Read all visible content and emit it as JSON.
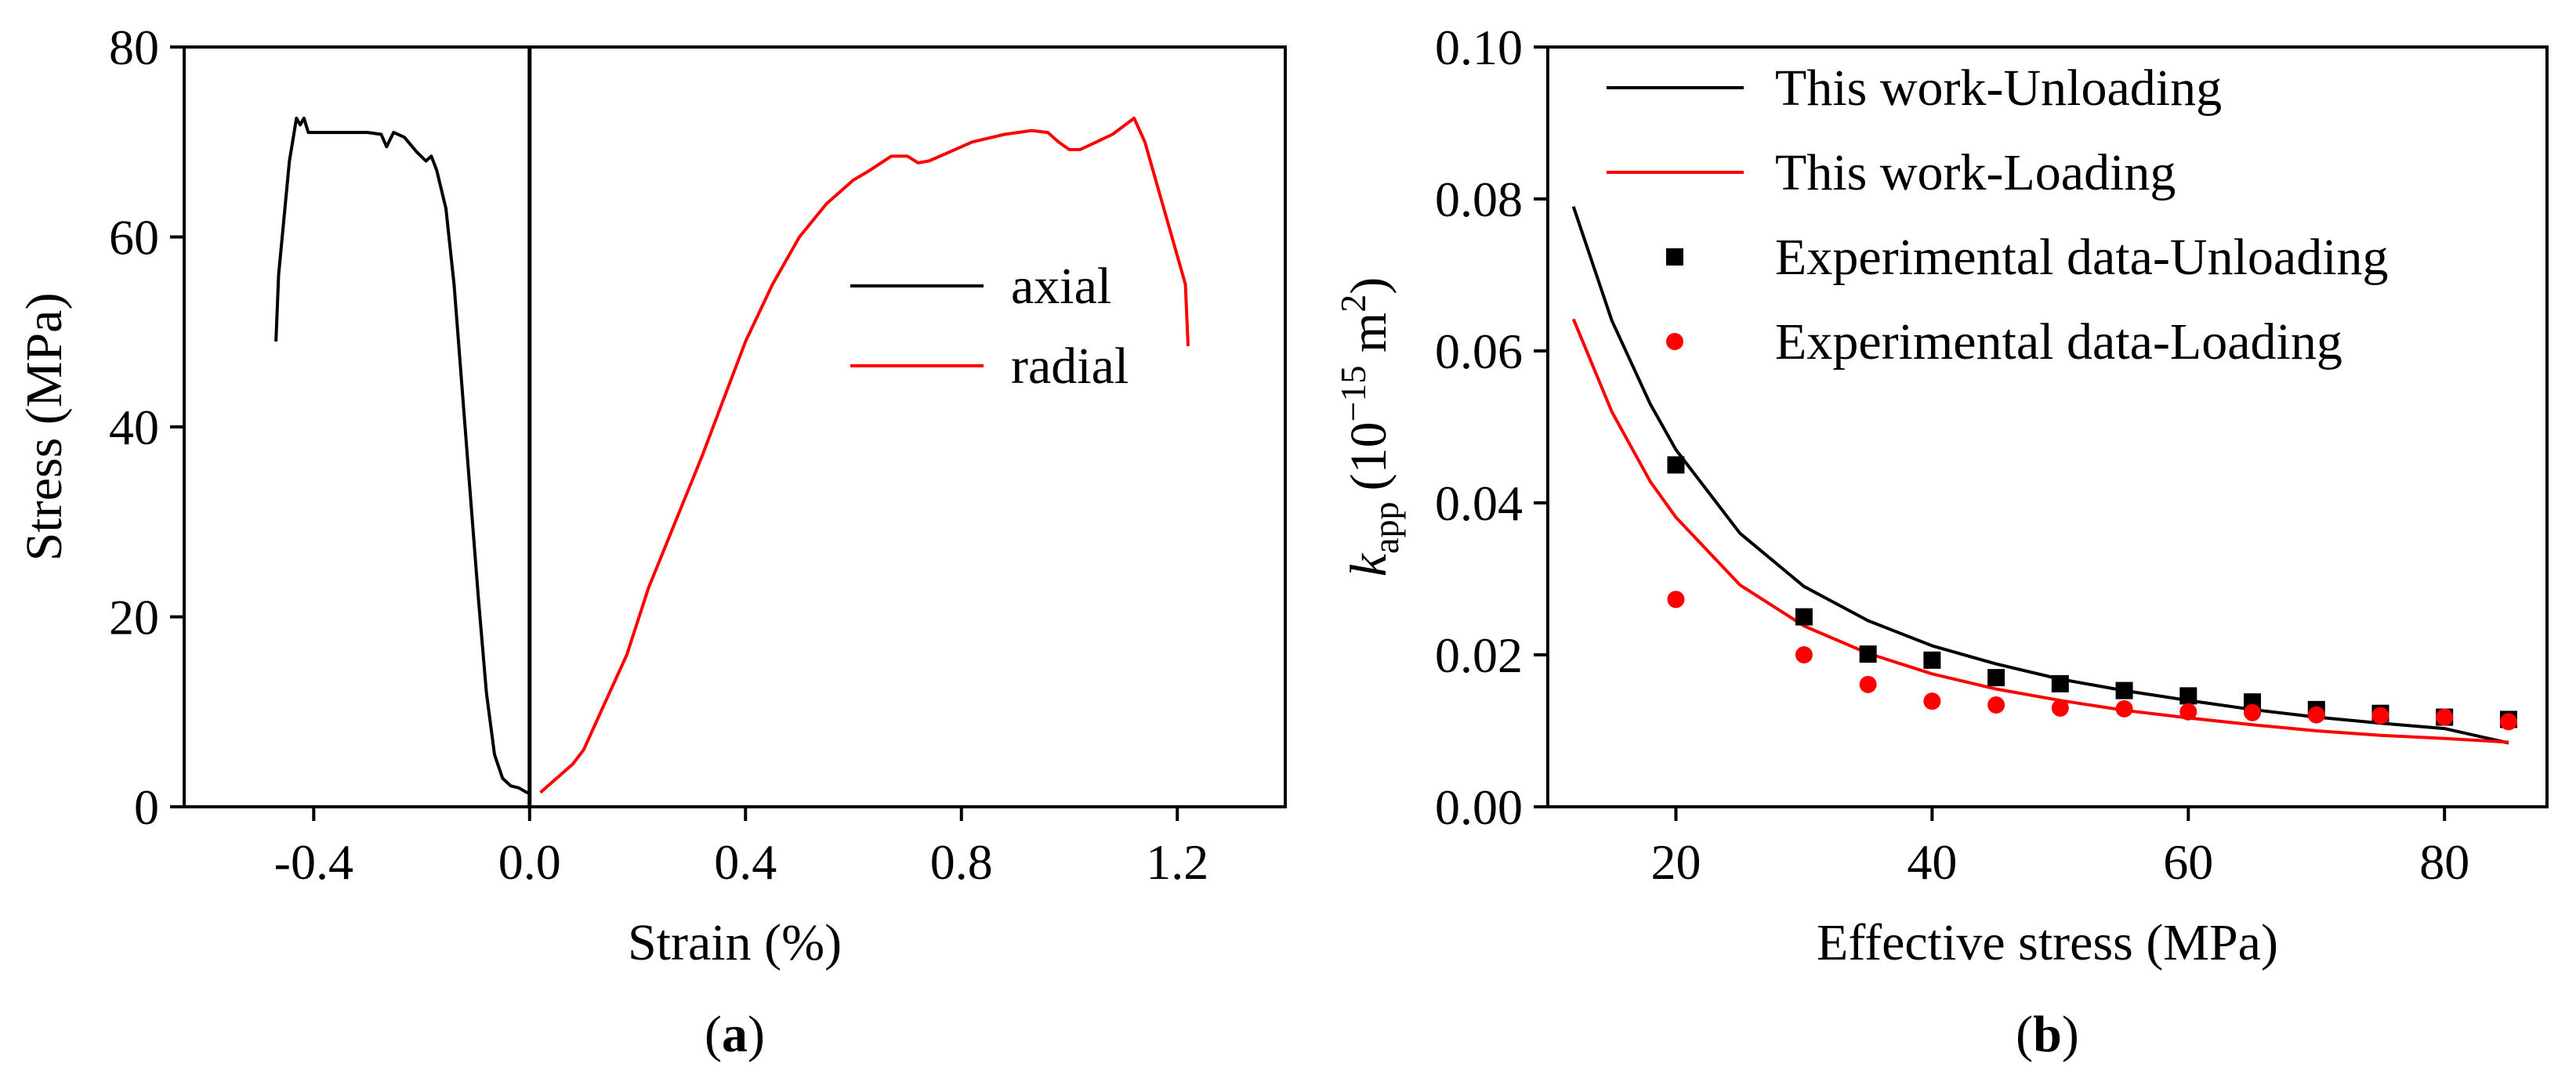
{
  "chart_data": [
    {
      "type": "line",
      "panel": "(a)",
      "panel_letter": "a",
      "xlabel": "Strain (%)",
      "ylabel": "Stress (MPa)",
      "xlim": [
        -0.64,
        1.4
      ],
      "ylim": [
        0,
        80
      ],
      "xticks": [
        -0.4,
        0.0,
        0.4,
        0.8,
        1.2
      ],
      "xtick_labels": [
        "-0.4",
        "0.0",
        "0.4",
        "0.8",
        "1.2"
      ],
      "yticks": [
        0,
        20,
        40,
        60,
        80
      ],
      "ytick_labels": [
        "0",
        "20",
        "40",
        "60",
        "80"
      ],
      "reference_line_x": 0.0,
      "legend": {
        "position": "center-right"
      },
      "series": [
        {
          "name": "axial",
          "color": "#000000",
          "x": [
            -0.47,
            -0.465,
            -0.455,
            -0.445,
            -0.432,
            -0.425,
            -0.418,
            -0.41,
            -0.39,
            -0.35,
            -0.3,
            -0.275,
            -0.265,
            -0.252,
            -0.232,
            -0.21,
            -0.192,
            -0.182,
            -0.172,
            -0.155,
            -0.14,
            -0.125,
            -0.11,
            -0.095,
            -0.08,
            -0.065,
            -0.05,
            -0.035,
            -0.02,
            -0.005,
            0.0
          ],
          "y": [
            49,
            56,
            62,
            68,
            72.5,
            71.8,
            72.5,
            71,
            71,
            71,
            71,
            70.8,
            69.5,
            71,
            70.5,
            69,
            68,
            68.5,
            67,
            63,
            55,
            44,
            33,
            22,
            12,
            5.5,
            3,
            2.2,
            2,
            1.5,
            1.5
          ]
        },
        {
          "name": "radial",
          "color": "#ff0000",
          "x": [
            0.02,
            0.05,
            0.08,
            0.1,
            0.14,
            0.18,
            0.22,
            0.27,
            0.32,
            0.36,
            0.4,
            0.45,
            0.5,
            0.55,
            0.6,
            0.63,
            0.67,
            0.7,
            0.72,
            0.74,
            0.78,
            0.82,
            0.88,
            0.93,
            0.96,
            0.98,
            1.0,
            1.02,
            1.05,
            1.08,
            1.12,
            1.14,
            1.16,
            1.18,
            1.2,
            1.215,
            1.22
          ],
          "y": [
            1.5,
            3,
            4.5,
            6,
            11,
            16,
            23,
            30,
            37,
            43,
            49,
            55,
            60,
            63.5,
            66,
            67,
            68.5,
            68.5,
            67.8,
            68,
            69,
            70,
            70.8,
            71.2,
            71,
            70,
            69.2,
            69.2,
            70,
            70.8,
            72.5,
            70,
            66,
            62,
            58,
            55,
            48.5
          ]
        }
      ]
    },
    {
      "type": "line",
      "panel": "(b)",
      "panel_letter": "b",
      "xlabel": "Effective stress (MPa)",
      "ylabel_main": "k",
      "ylabel_sub": "app",
      "ylabel_units_pre": "(10",
      "ylabel_units_exp": "−15",
      "ylabel_units_mid": " m",
      "ylabel_units_exp2": "2",
      "ylabel_units_post": ")",
      "xlim": [
        10,
        88
      ],
      "ylim": [
        0,
        0.1
      ],
      "xticks": [
        20,
        40,
        60,
        80
      ],
      "xtick_labels": [
        "20",
        "40",
        "60",
        "80"
      ],
      "yticks": [
        0.0,
        0.02,
        0.04,
        0.06,
        0.08,
        0.1
      ],
      "ytick_labels": [
        "0.00",
        "0.02",
        "0.04",
        "0.06",
        "0.08",
        "0.10"
      ],
      "legend": {
        "position": "top-right"
      },
      "series": [
        {
          "name": "This work-Unloading",
          "kind": "line",
          "color": "#000000",
          "x": [
            12,
            15,
            18,
            20,
            25,
            30,
            35,
            40,
            45,
            50,
            55,
            60,
            65,
            70,
            75,
            80,
            85
          ],
          "y": [
            0.079,
            0.064,
            0.053,
            0.047,
            0.036,
            0.029,
            0.0245,
            0.0212,
            0.0188,
            0.0168,
            0.0153,
            0.014,
            0.0128,
            0.0118,
            0.011,
            0.0103,
            0.0084
          ]
        },
        {
          "name": "This work-Loading",
          "kind": "line",
          "color": "#ff0000",
          "x": [
            12,
            15,
            18,
            20,
            25,
            30,
            35,
            40,
            45,
            50,
            55,
            60,
            65,
            70,
            75,
            80,
            85
          ],
          "y": [
            0.0642,
            0.052,
            0.0428,
            0.0381,
            0.0292,
            0.0238,
            0.0202,
            0.0175,
            0.0155,
            0.014,
            0.0127,
            0.0117,
            0.0108,
            0.01,
            0.0094,
            0.009,
            0.0085
          ]
        },
        {
          "name": "Experimental data-Unloading",
          "kind": "scatter",
          "marker": "square",
          "color": "#000000",
          "x": [
            20,
            30,
            35,
            40,
            45,
            50,
            55,
            60,
            65,
            70,
            75,
            80,
            85
          ],
          "y": [
            0.045,
            0.025,
            0.0201,
            0.0193,
            0.017,
            0.0162,
            0.0153,
            0.0146,
            0.0138,
            0.0128,
            0.0123,
            0.0118,
            0.0115
          ]
        },
        {
          "name": "Experimental data-Loading",
          "kind": "scatter",
          "marker": "circle",
          "color": "#ff0000",
          "x": [
            20,
            30,
            35,
            40,
            45,
            50,
            55,
            60,
            65,
            70,
            75,
            80,
            85
          ],
          "y": [
            0.0273,
            0.02,
            0.0161,
            0.0139,
            0.0134,
            0.013,
            0.0129,
            0.0125,
            0.0124,
            0.0121,
            0.012,
            0.0118,
            0.0112
          ]
        }
      ]
    }
  ]
}
